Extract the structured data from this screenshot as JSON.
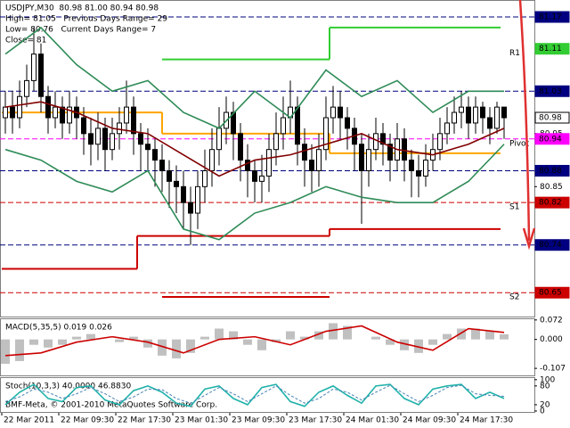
{
  "chart_data": [
    {
      "type": "candlestick",
      "title": "USDJPY,M30  80.98 81.00 80.94 80.98",
      "info": [
        "High= 81.05   Previous Days Range= 29",
        "Low= 80.76   Current Days Range= 7",
        "Close= 81"
      ],
      "footer": "BMF-Meta, © 2001-2010 MetaQuotes Software Corp.",
      "xlim": [
        -0.75,
        74.25
      ],
      "xticks": [
        {
          "value": -0.5,
          "label": "22 Mar 2011"
        },
        {
          "value": 7.5,
          "label": "22 Mar 09:30"
        },
        {
          "value": 15.5,
          "label": "22 Mar 17:30"
        },
        {
          "value": 23.5,
          "label": "23 Mar 01:30"
        },
        {
          "value": 31.5,
          "label": "23 Mar 09:30"
        },
        {
          "value": 39.5,
          "label": "23 Mar 17:30"
        },
        {
          "value": 47.5,
          "label": "24 Mar 01:30"
        },
        {
          "value": 55.5,
          "label": "24 Mar 09:30"
        },
        {
          "value": 63.5,
          "label": "24 Mar 17:30"
        }
      ],
      "ylim": [
        80.605,
        81.202
      ],
      "yticks": [
        80.95,
        80.85
      ],
      "candle_color": "#000000",
      "open": [
        80.98,
        81.0,
        80.98,
        81.02,
        81.05,
        81.1,
        81.02,
        80.98,
        81.0,
        80.97,
        81.0,
        80.98,
        80.95,
        80.93,
        80.96,
        80.92,
        80.95,
        80.97,
        81.0,
        80.95,
        80.93,
        80.92,
        80.9,
        80.88,
        80.86,
        80.85,
        80.82,
        80.8,
        80.85,
        80.88,
        80.92,
        80.96,
        80.99,
        80.95,
        80.9,
        80.88,
        80.86,
        80.87,
        80.92,
        80.95,
        80.98,
        81.0,
        80.93,
        80.9,
        80.88,
        80.92,
        80.98,
        81.0,
        80.98,
        80.96,
        80.93,
        80.88,
        80.92,
        80.95,
        80.93,
        80.9,
        80.94,
        80.9,
        80.88,
        80.87,
        80.9,
        80.92,
        80.95,
        80.97,
        80.99,
        81.0,
        80.97,
        81.0,
        80.98,
        80.96,
        81.0
      ],
      "high": [
        81.03,
        81.03,
        81.05,
        81.08,
        81.15,
        81.12,
        81.04,
        81.03,
        81.02,
        81.03,
        81.02,
        81.0,
        80.98,
        80.99,
        80.98,
        80.98,
        81.0,
        81.05,
        81.02,
        80.97,
        80.96,
        80.94,
        80.93,
        80.9,
        80.89,
        80.88,
        80.85,
        80.88,
        80.92,
        80.96,
        81.0,
        81.02,
        81.01,
        80.97,
        80.93,
        80.9,
        80.91,
        80.95,
        80.99,
        81.02,
        81.05,
        81.02,
        80.96,
        80.93,
        80.95,
        81.02,
        81.04,
        81.03,
        81.0,
        80.98,
        80.95,
        80.95,
        80.98,
        80.97,
        80.95,
        80.97,
        80.96,
        80.92,
        80.91,
        80.93,
        80.95,
        80.98,
        81.0,
        81.02,
        81.03,
        81.02,
        81.02,
        81.01,
        81.0,
        81.01,
        81.0
      ],
      "low": [
        80.95,
        80.95,
        80.96,
        81.0,
        81.03,
        80.99,
        80.95,
        80.96,
        80.94,
        80.95,
        80.94,
        80.91,
        80.89,
        80.9,
        80.88,
        80.9,
        80.92,
        80.95,
        80.91,
        80.88,
        80.88,
        80.85,
        80.84,
        80.81,
        80.8,
        80.77,
        80.74,
        80.77,
        80.82,
        80.85,
        80.89,
        80.93,
        80.9,
        80.86,
        80.83,
        80.82,
        80.82,
        80.84,
        80.89,
        80.92,
        80.95,
        80.89,
        80.85,
        80.84,
        80.85,
        80.9,
        80.95,
        80.94,
        80.92,
        80.88,
        80.78,
        80.85,
        80.9,
        80.89,
        80.86,
        80.88,
        80.86,
        80.83,
        80.83,
        80.85,
        80.88,
        80.9,
        80.93,
        80.95,
        80.96,
        80.94,
        80.95,
        80.95,
        80.93,
        80.95,
        80.94
      ],
      "close": [
        81.0,
        80.98,
        81.02,
        81.05,
        81.1,
        81.02,
        80.98,
        81.0,
        80.97,
        81.0,
        80.98,
        80.95,
        80.93,
        80.96,
        80.92,
        80.95,
        80.97,
        81.0,
        80.95,
        80.93,
        80.92,
        80.9,
        80.88,
        80.86,
        80.85,
        80.82,
        80.8,
        80.85,
        80.88,
        80.92,
        80.96,
        80.99,
        80.95,
        80.9,
        80.88,
        80.86,
        80.87,
        80.92,
        80.95,
        80.98,
        81.0,
        80.93,
        80.9,
        80.88,
        80.92,
        80.98,
        81.0,
        80.98,
        80.96,
        80.93,
        80.88,
        80.92,
        80.95,
        80.93,
        80.9,
        80.94,
        80.9,
        80.88,
        80.87,
        80.9,
        80.92,
        80.95,
        80.97,
        80.99,
        81.0,
        80.97,
        81.0,
        80.98,
        80.96,
        81.0,
        80.98
      ],
      "series": [
        {
          "color": "#800000",
          "x": [
            0,
            5,
            10,
            15,
            20,
            25,
            30,
            35,
            40,
            45,
            50,
            55,
            60,
            65,
            70
          ],
          "values": [
            81.0,
            81.01,
            80.99,
            80.96,
            80.95,
            80.91,
            80.87,
            80.9,
            80.91,
            80.93,
            80.95,
            80.92,
            80.91,
            80.93,
            80.96
          ]
        },
        {
          "color": "#2e8b57",
          "x": [
            0,
            5,
            10,
            15,
            20,
            25,
            30,
            35,
            40,
            45,
            50,
            55,
            60,
            65,
            70
          ],
          "values": [
            81.1,
            81.15,
            81.08,
            81.03,
            81.05,
            80.99,
            80.96,
            81.03,
            80.98,
            81.07,
            81.02,
            81.05,
            80.99,
            81.03,
            81.03
          ]
        },
        {
          "color": "#2e8b57",
          "x": [
            0,
            5,
            10,
            15,
            20,
            25,
            30,
            35,
            40,
            45,
            50,
            55,
            60,
            65,
            70
          ],
          "values": [
            80.92,
            80.9,
            80.86,
            80.84,
            80.88,
            80.77,
            80.75,
            80.8,
            80.82,
            80.85,
            80.83,
            80.82,
            80.82,
            80.86,
            80.93
          ]
        }
      ],
      "steps": [
        {
          "color": "#32cd32",
          "edges": [
            -0.5,
            22,
            45.5,
            69.5
          ],
          "values": [
            null,
            81.09,
            81.15
          ]
        },
        {
          "color": "#ffa500",
          "edges": [
            -0.5,
            22,
            45.5,
            69.5
          ],
          "values": [
            80.99,
            80.95,
            80.913
          ]
        },
        {
          "color": "#cc0000",
          "edges": [
            -0.5,
            18.5,
            45.5,
            69.5
          ],
          "values": [
            80.695,
            80.757,
            80.77
          ]
        },
        {
          "color": "#cc0000",
          "edges": [
            -0.5,
            22,
            45.5,
            69.5
          ],
          "values": [
            null,
            80.642,
            null
          ]
        }
      ],
      "levels": [
        {
          "value": 81.17,
          "color": "#000080",
          "line": true
        },
        {
          "value": 81.11,
          "color": "#32cd32",
          "line": false,
          "tag": "R1"
        },
        {
          "value": 81.03,
          "color": "#000080",
          "line": true
        },
        {
          "value": 80.98,
          "color": "#ffffff",
          "line": false
        },
        {
          "value": 80.94,
          "color": "#ff00ff",
          "line": true,
          "tag": "Pivot"
        },
        {
          "value": 80.88,
          "color": "#000080",
          "line": true
        },
        {
          "value": 80.82,
          "color": "#cc0000",
          "line": true,
          "tag": "S1"
        },
        {
          "value": 80.74,
          "color": "#000080",
          "line": true
        },
        {
          "value": 80.65,
          "color": "#cc0000",
          "line": true,
          "tag": "S2"
        }
      ]
    },
    {
      "type": "bar",
      "title": "MACD(5,35,5) 0.019 0.026",
      "ylim": [
        -0.133,
        0.078
      ],
      "yticks": [
        0.072,
        {
          "value": 0,
          "label": "0.000"
        },
        -0.107
      ],
      "bars": {
        "color": "#c0c0c0",
        "x": [
          0,
          2,
          4,
          6,
          8,
          10,
          12,
          14,
          16,
          18,
          20,
          22,
          24,
          26,
          28,
          30,
          32,
          34,
          36,
          38,
          40,
          42,
          44,
          46,
          48,
          50,
          52,
          54,
          56,
          58,
          60,
          62,
          64,
          66,
          68,
          70
        ],
        "values": [
          -0.09,
          -0.08,
          -0.02,
          -0.03,
          -0.02,
          0.01,
          0.02,
          0.0,
          -0.01,
          0.01,
          -0.03,
          -0.06,
          -0.07,
          -0.05,
          0.01,
          0.04,
          0.03,
          -0.02,
          -0.04,
          -0.01,
          0.03,
          0.01,
          0.03,
          0.06,
          0.05,
          0.0,
          0.01,
          -0.02,
          -0.04,
          -0.05,
          -0.02,
          0.02,
          0.04,
          0.04,
          0.03,
          0.019
        ]
      },
      "series": [
        {
          "color": "#cc0000",
          "x": [
            0,
            5,
            10,
            15,
            20,
            25,
            30,
            35,
            40,
            45,
            50,
            55,
            60,
            65,
            70
          ],
          "values": [
            -0.06,
            -0.05,
            -0.01,
            0.01,
            -0.01,
            -0.05,
            0.0,
            0.01,
            -0.02,
            0.03,
            0.05,
            -0.01,
            -0.04,
            0.04,
            0.026
          ]
        }
      ]
    },
    {
      "type": "line",
      "title": "Stoch(10,3,3) 40.0000 46.8830",
      "ylim": [
        -3,
        108
      ],
      "yticks": [
        100,
        80,
        20,
        0
      ],
      "series": [
        {
          "color": "#20b2aa",
          "x": [
            0,
            2,
            4,
            6,
            8,
            10,
            12,
            14,
            16,
            18,
            20,
            22,
            24,
            26,
            28,
            30,
            32,
            34,
            36,
            38,
            40,
            42,
            44,
            46,
            48,
            50,
            52,
            54,
            56,
            58,
            60,
            62,
            64,
            66,
            68,
            70
          ],
          "values": [
            20,
            60,
            85,
            40,
            30,
            75,
            80,
            35,
            20,
            65,
            80,
            60,
            25,
            15,
            70,
            80,
            40,
            20,
            75,
            85,
            30,
            15,
            60,
            80,
            50,
            25,
            80,
            85,
            40,
            20,
            70,
            80,
            85,
            40,
            60,
            40
          ]
        },
        {
          "color": "#4682b4",
          "dash": true,
          "x": [
            0,
            2,
            4,
            6,
            8,
            10,
            12,
            14,
            16,
            18,
            20,
            22,
            24,
            26,
            28,
            30,
            32,
            34,
            36,
            38,
            40,
            42,
            44,
            46,
            48,
            50,
            52,
            54,
            56,
            58,
            60,
            62,
            64,
            66,
            68,
            70
          ],
          "values": [
            30,
            45,
            70,
            60,
            40,
            55,
            75,
            55,
            30,
            45,
            70,
            68,
            40,
            25,
            50,
            75,
            55,
            30,
            55,
            80,
            50,
            25,
            40,
            70,
            60,
            35,
            60,
            82,
            55,
            30,
            50,
            75,
            82,
            55,
            50,
            46.883
          ]
        }
      ]
    }
  ]
}
